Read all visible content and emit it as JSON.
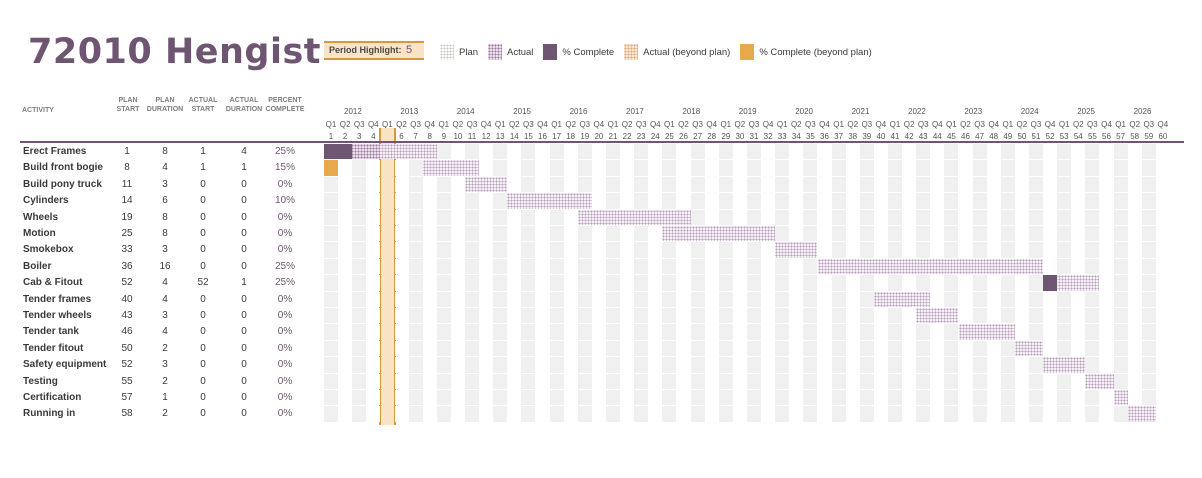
{
  "title": "72010 Hengist",
  "period_highlight": {
    "label": "Period Highlight:",
    "value": 5
  },
  "legend": [
    {
      "name": "plan",
      "label": "Plan",
      "icon": "plan-swatch"
    },
    {
      "name": "actual",
      "label": "Actual",
      "icon": "actual-swatch"
    },
    {
      "name": "complete",
      "label": "% Complete",
      "icon": "complete-swatch"
    },
    {
      "name": "actual-beyond",
      "label": "Actual (beyond plan)",
      "icon": "actual-beyond-swatch"
    },
    {
      "name": "complete-beyond",
      "label": "% Complete (beyond plan)",
      "icon": "complete-beyond-swatch"
    }
  ],
  "colors": {
    "accent": "#6e5571",
    "highlight_fill": "#fbe3c6",
    "highlight_border": "#d49a40",
    "complete_beyond": "#e8a94c",
    "stripe": "#f0f0f0"
  },
  "columns": {
    "activity": "ACTIVITY",
    "plan_start": [
      "PLAN",
      "START"
    ],
    "plan_duration": [
      "PLAN",
      "DURATION"
    ],
    "actual_start": [
      "ACTUAL",
      "START"
    ],
    "actual_duration": [
      "ACTUAL",
      "DURATION"
    ],
    "percent_complete": [
      "PERCENT",
      "COMPLETE"
    ]
  },
  "timeline": {
    "years": [
      "2012",
      "2013",
      "2014",
      "2015",
      "2016",
      "2017",
      "2018",
      "2019",
      "2020",
      "2021",
      "2022",
      "2023",
      "2024",
      "2025",
      "2026"
    ],
    "quarters": [
      "Q1",
      "Q2",
      "Q3",
      "Q4"
    ],
    "periods": 60
  },
  "activities": [
    {
      "name": "Erect Frames",
      "plan_start": 1,
      "plan_duration": 8,
      "actual_start": 1,
      "actual_duration": 4,
      "percent": "25%",
      "pct": 25
    },
    {
      "name": "Build front bogie",
      "plan_start": 8,
      "plan_duration": 4,
      "actual_start": 1,
      "actual_duration": 1,
      "percent": "15%",
      "pct": 15
    },
    {
      "name": "Build pony truck",
      "plan_start": 11,
      "plan_duration": 3,
      "actual_start": 0,
      "actual_duration": 0,
      "percent": "0%",
      "pct": 0
    },
    {
      "name": "Cylinders",
      "plan_start": 14,
      "plan_duration": 6,
      "actual_start": 0,
      "actual_duration": 0,
      "percent": "10%",
      "pct": 10
    },
    {
      "name": "Wheels",
      "plan_start": 19,
      "plan_duration": 8,
      "actual_start": 0,
      "actual_duration": 0,
      "percent": "0%",
      "pct": 0
    },
    {
      "name": "Motion",
      "plan_start": 25,
      "plan_duration": 8,
      "actual_start": 0,
      "actual_duration": 0,
      "percent": "0%",
      "pct": 0
    },
    {
      "name": "Smokebox",
      "plan_start": 33,
      "plan_duration": 3,
      "actual_start": 0,
      "actual_duration": 0,
      "percent": "0%",
      "pct": 0
    },
    {
      "name": "Boiler",
      "plan_start": 36,
      "plan_duration": 16,
      "actual_start": 0,
      "actual_duration": 0,
      "percent": "25%",
      "pct": 25
    },
    {
      "name": "Cab & Fitout",
      "plan_start": 52,
      "plan_duration": 4,
      "actual_start": 52,
      "actual_duration": 1,
      "percent": "25%",
      "pct": 25
    },
    {
      "name": "Tender frames",
      "plan_start": 40,
      "plan_duration": 4,
      "actual_start": 0,
      "actual_duration": 0,
      "percent": "0%",
      "pct": 0
    },
    {
      "name": "Tender wheels",
      "plan_start": 43,
      "plan_duration": 3,
      "actual_start": 0,
      "actual_duration": 0,
      "percent": "0%",
      "pct": 0
    },
    {
      "name": "Tender tank",
      "plan_start": 46,
      "plan_duration": 4,
      "actual_start": 0,
      "actual_duration": 0,
      "percent": "0%",
      "pct": 0
    },
    {
      "name": "Tender fitout",
      "plan_start": 50,
      "plan_duration": 2,
      "actual_start": 0,
      "actual_duration": 0,
      "percent": "0%",
      "pct": 0
    },
    {
      "name": "Safety equipment",
      "plan_start": 52,
      "plan_duration": 3,
      "actual_start": 0,
      "actual_duration": 0,
      "percent": "0%",
      "pct": 0
    },
    {
      "name": "Testing",
      "plan_start": 55,
      "plan_duration": 2,
      "actual_start": 0,
      "actual_duration": 0,
      "percent": "0%",
      "pct": 0
    },
    {
      "name": "Certification",
      "plan_start": 57,
      "plan_duration": 1,
      "actual_start": 0,
      "actual_duration": 0,
      "percent": "0%",
      "pct": 0
    },
    {
      "name": "Running in",
      "plan_start": 58,
      "plan_duration": 2,
      "actual_start": 0,
      "actual_duration": 0,
      "percent": "0%",
      "pct": 0
    }
  ]
}
